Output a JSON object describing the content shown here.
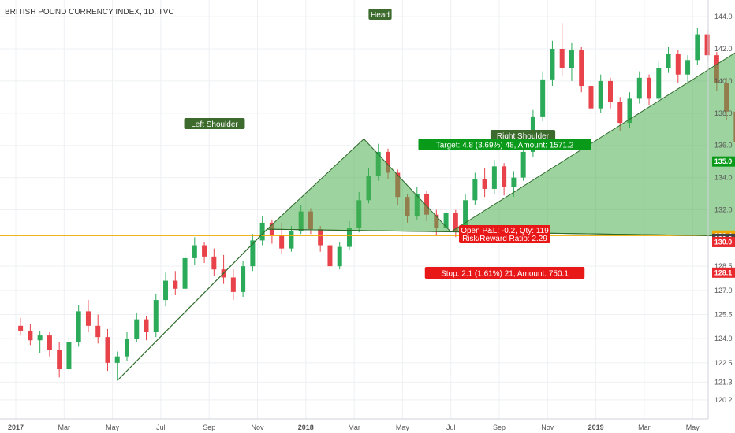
{
  "chart_data": {
    "type": "candlestick",
    "title": "BRITISH POUND CURRENCY INDEX, 1D, TVC",
    "y_ticks": [
      "120.2",
      "121.3",
      "122.5",
      "124.0",
      "125.5",
      "127.0",
      "128.5",
      "130.0",
      "132.0",
      "134.0",
      "136.0",
      "138.0",
      "140.0",
      "142.0",
      "144.0"
    ],
    "x_ticks": [
      "2017",
      "Mar",
      "May",
      "Jul",
      "Sep",
      "Nov",
      "2018",
      "Mar",
      "May",
      "Jul",
      "Sep",
      "Nov",
      "2019",
      "Mar",
      "May"
    ],
    "ylim": [
      120.0,
      144.2
    ],
    "grid": true,
    "price_badges": [
      {
        "text": "135.0",
        "value": 135.0,
        "color": "#089a18"
      },
      {
        "text": "130.4",
        "value": 130.4,
        "color": "#f0a800"
      },
      {
        "text": "130.2",
        "value": 130.2,
        "color": "#444444"
      },
      {
        "text": "130.0",
        "value": 130.0,
        "color": "#e8282c"
      },
      {
        "text": "128.1",
        "value": 128.1,
        "color": "#e8282c"
      }
    ],
    "horizontal_line": {
      "value": 130.4,
      "color": "#f0a800"
    },
    "pattern": {
      "left_shoulder": {
        "label": "Left Shoulder",
        "t": 7.2,
        "v": 136.4
      },
      "head": {
        "label": "Head",
        "t": 15.7,
        "v": 143.3
      },
      "right_shoulder": {
        "label": "Right Shoulder",
        "t": 20.3,
        "v": 135.3
      },
      "neckline_left": {
        "t": 5.2,
        "v": 130.8
      },
      "neckline_right": {
        "t": 23.6,
        "v": 130.0
      }
    },
    "projection": {
      "from": {
        "t": 20.3,
        "v": 135.3
      },
      "to": {
        "t": 27.8,
        "v": 121.0
      }
    },
    "left_leg": {
      "from": {
        "t": 2.1,
        "v": 121.4
      },
      "to": {
        "t": 5.2,
        "v": 130.8
      }
    },
    "position": {
      "t_start": 18.8,
      "t_end": 21.3,
      "entry": 130.2,
      "target": 135.0,
      "stop": 128.1,
      "target_text": "Target: 4.8 (3.69%) 48, Amount: 1571.2",
      "pnl_text": "Open P&L: -0.2, Qty: 119",
      "rr_text": "Risk/Reward Ratio: 2.29",
      "stop_text": "Stop: 2.1 (1.61%) 21, Amount: 750.1"
    },
    "candles": [
      {
        "t": 0.1,
        "o": 124.8,
        "h": 125.3,
        "l": 124.2,
        "c": 124.5
      },
      {
        "t": 0.3,
        "o": 124.5,
        "h": 124.9,
        "l": 123.6,
        "c": 123.9
      },
      {
        "t": 0.5,
        "o": 123.9,
        "h": 124.5,
        "l": 123.1,
        "c": 124.2
      },
      {
        "t": 0.7,
        "o": 124.2,
        "h": 124.4,
        "l": 122.9,
        "c": 123.3
      },
      {
        "t": 0.9,
        "o": 123.3,
        "h": 123.8,
        "l": 121.6,
        "c": 122.1
      },
      {
        "t": 1.1,
        "o": 122.1,
        "h": 124.1,
        "l": 121.9,
        "c": 123.8
      },
      {
        "t": 1.3,
        "o": 123.8,
        "h": 126.1,
        "l": 123.5,
        "c": 125.7
      },
      {
        "t": 1.5,
        "o": 125.7,
        "h": 126.4,
        "l": 124.4,
        "c": 124.8
      },
      {
        "t": 1.7,
        "o": 124.8,
        "h": 125.5,
        "l": 123.7,
        "c": 124.1
      },
      {
        "t": 1.9,
        "o": 124.1,
        "h": 124.6,
        "l": 122.0,
        "c": 122.5
      },
      {
        "t": 2.1,
        "o": 122.5,
        "h": 123.2,
        "l": 121.4,
        "c": 122.9
      },
      {
        "t": 2.3,
        "o": 122.9,
        "h": 124.4,
        "l": 122.6,
        "c": 124.0
      },
      {
        "t": 2.5,
        "o": 124.0,
        "h": 125.6,
        "l": 123.8,
        "c": 125.2
      },
      {
        "t": 2.7,
        "o": 125.2,
        "h": 125.4,
        "l": 123.9,
        "c": 124.4
      },
      {
        "t": 2.9,
        "o": 124.4,
        "h": 126.8,
        "l": 124.1,
        "c": 126.4
      },
      {
        "t": 3.1,
        "o": 126.4,
        "h": 128.1,
        "l": 126.0,
        "c": 127.6
      },
      {
        "t": 3.3,
        "o": 127.6,
        "h": 128.2,
        "l": 126.7,
        "c": 127.1
      },
      {
        "t": 3.5,
        "o": 127.1,
        "h": 129.4,
        "l": 126.9,
        "c": 129.0
      },
      {
        "t": 3.7,
        "o": 129.0,
        "h": 130.3,
        "l": 128.6,
        "c": 129.8
      },
      {
        "t": 3.9,
        "o": 129.8,
        "h": 130.0,
        "l": 128.7,
        "c": 129.1
      },
      {
        "t": 4.1,
        "o": 129.1,
        "h": 129.6,
        "l": 127.9,
        "c": 128.3
      },
      {
        "t": 4.3,
        "o": 128.3,
        "h": 129.2,
        "l": 127.4,
        "c": 127.8
      },
      {
        "t": 4.5,
        "o": 127.8,
        "h": 128.3,
        "l": 126.4,
        "c": 126.9
      },
      {
        "t": 4.7,
        "o": 126.9,
        "h": 128.8,
        "l": 126.6,
        "c": 128.5
      },
      {
        "t": 4.9,
        "o": 128.5,
        "h": 130.5,
        "l": 128.2,
        "c": 130.1
      },
      {
        "t": 5.1,
        "o": 130.1,
        "h": 131.6,
        "l": 129.8,
        "c": 131.2
      },
      {
        "t": 5.3,
        "o": 131.2,
        "h": 131.4,
        "l": 129.9,
        "c": 130.4
      },
      {
        "t": 5.5,
        "o": 130.4,
        "h": 131.2,
        "l": 129.3,
        "c": 129.6
      },
      {
        "t": 5.7,
        "o": 129.6,
        "h": 131.0,
        "l": 129.4,
        "c": 130.7
      },
      {
        "t": 5.9,
        "o": 130.7,
        "h": 132.3,
        "l": 130.5,
        "c": 131.9
      },
      {
        "t": 6.1,
        "o": 131.9,
        "h": 132.1,
        "l": 130.5,
        "c": 130.8
      },
      {
        "t": 6.3,
        "o": 130.8,
        "h": 131.0,
        "l": 129.4,
        "c": 129.8
      },
      {
        "t": 6.5,
        "o": 129.8,
        "h": 130.1,
        "l": 128.1,
        "c": 128.5
      },
      {
        "t": 6.7,
        "o": 128.5,
        "h": 130.0,
        "l": 128.3,
        "c": 129.7
      },
      {
        "t": 6.9,
        "o": 129.7,
        "h": 131.3,
        "l": 129.5,
        "c": 130.9
      },
      {
        "t": 7.1,
        "o": 130.9,
        "h": 133.1,
        "l": 130.6,
        "c": 132.6
      },
      {
        "t": 7.3,
        "o": 132.6,
        "h": 134.6,
        "l": 132.4,
        "c": 134.1
      },
      {
        "t": 7.5,
        "o": 134.1,
        "h": 136.1,
        "l": 133.8,
        "c": 135.6
      },
      {
        "t": 7.7,
        "o": 135.6,
        "h": 135.8,
        "l": 133.9,
        "c": 134.3
      },
      {
        "t": 7.9,
        "o": 134.3,
        "h": 134.5,
        "l": 132.3,
        "c": 132.8
      },
      {
        "t": 8.1,
        "o": 132.8,
        "h": 133.0,
        "l": 131.2,
        "c": 131.6
      },
      {
        "t": 8.3,
        "o": 131.6,
        "h": 133.4,
        "l": 131.4,
        "c": 133.0
      },
      {
        "t": 8.5,
        "o": 133.0,
        "h": 133.2,
        "l": 131.3,
        "c": 131.7
      },
      {
        "t": 8.7,
        "o": 131.7,
        "h": 132.0,
        "l": 130.4,
        "c": 130.9
      },
      {
        "t": 8.9,
        "o": 130.9,
        "h": 132.1,
        "l": 130.6,
        "c": 131.8
      },
      {
        "t": 9.1,
        "o": 131.8,
        "h": 132.0,
        "l": 130.3,
        "c": 130.7
      },
      {
        "t": 9.3,
        "o": 130.7,
        "h": 133.0,
        "l": 130.5,
        "c": 132.6
      },
      {
        "t": 9.5,
        "o": 132.6,
        "h": 134.3,
        "l": 132.3,
        "c": 133.9
      },
      {
        "t": 9.7,
        "o": 133.9,
        "h": 134.6,
        "l": 132.8,
        "c": 133.3
      },
      {
        "t": 9.9,
        "o": 133.3,
        "h": 135.1,
        "l": 133.0,
        "c": 134.7
      },
      {
        "t": 10.1,
        "o": 134.7,
        "h": 134.9,
        "l": 132.9,
        "c": 133.4
      },
      {
        "t": 10.3,
        "o": 133.4,
        "h": 134.4,
        "l": 132.8,
        "c": 134.0
      },
      {
        "t": 10.5,
        "o": 134.0,
        "h": 136.1,
        "l": 133.8,
        "c": 135.6
      },
      {
        "t": 10.7,
        "o": 135.6,
        "h": 138.2,
        "l": 135.3,
        "c": 137.8
      },
      {
        "t": 10.9,
        "o": 137.8,
        "h": 140.6,
        "l": 137.5,
        "c": 140.1
      },
      {
        "t": 11.1,
        "o": 140.1,
        "h": 142.5,
        "l": 139.7,
        "c": 142.0
      },
      {
        "t": 11.3,
        "o": 142.0,
        "h": 143.6,
        "l": 140.3,
        "c": 140.8
      },
      {
        "t": 11.5,
        "o": 140.8,
        "h": 142.4,
        "l": 140.0,
        "c": 141.9
      },
      {
        "t": 11.7,
        "o": 141.9,
        "h": 142.1,
        "l": 139.3,
        "c": 139.7
      },
      {
        "t": 11.9,
        "o": 139.7,
        "h": 140.1,
        "l": 137.8,
        "c": 138.3
      },
      {
        "t": 12.1,
        "o": 138.3,
        "h": 140.4,
        "l": 138.0,
        "c": 140.0
      },
      {
        "t": 12.3,
        "o": 140.0,
        "h": 140.2,
        "l": 138.3,
        "c": 138.7
      },
      {
        "t": 12.5,
        "o": 138.7,
        "h": 139.0,
        "l": 136.9,
        "c": 137.4
      },
      {
        "t": 12.7,
        "o": 137.4,
        "h": 139.3,
        "l": 137.1,
        "c": 138.9
      },
      {
        "t": 12.9,
        "o": 138.9,
        "h": 140.6,
        "l": 138.6,
        "c": 140.2
      },
      {
        "t": 13.1,
        "o": 140.2,
        "h": 140.4,
        "l": 138.5,
        "c": 138.9
      },
      {
        "t": 13.3,
        "o": 138.9,
        "h": 141.2,
        "l": 138.7,
        "c": 140.8
      },
      {
        "t": 13.5,
        "o": 140.8,
        "h": 142.1,
        "l": 140.5,
        "c": 141.7
      },
      {
        "t": 13.7,
        "o": 141.7,
        "h": 141.9,
        "l": 139.9,
        "c": 140.4
      },
      {
        "t": 13.9,
        "o": 140.4,
        "h": 141.6,
        "l": 139.8,
        "c": 141.3
      },
      {
        "t": 14.1,
        "o": 141.3,
        "h": 143.3,
        "l": 141.0,
        "c": 142.9
      },
      {
        "t": 14.3,
        "o": 142.9,
        "h": 143.1,
        "l": 141.2,
        "c": 141.6
      },
      {
        "t": 14.5,
        "o": 141.6,
        "h": 141.8,
        "l": 139.4,
        "c": 139.9
      },
      {
        "t": 14.7,
        "o": 139.9,
        "h": 140.2,
        "l": 137.6,
        "c": 138.1
      },
      {
        "t": 14.9,
        "o": 138.1,
        "h": 138.4,
        "l": 135.8,
        "c": 136.2
      },
      {
        "t": 15.1,
        "o": 136.2,
        "h": 136.5,
        "l": 134.4,
        "c": 134.8
      },
      {
        "t": 15.3,
        "o": 134.8,
        "h": 135.9,
        "l": 134.1,
        "c": 135.5
      },
      {
        "t": 15.5,
        "o": 135.5,
        "h": 135.7,
        "l": 133.7,
        "c": 134.1
      },
      {
        "t": 15.7,
        "o": 134.1,
        "h": 134.3,
        "l": 132.3,
        "c": 132.7
      },
      {
        "t": 15.9,
        "o": 132.7,
        "h": 134.0,
        "l": 132.4,
        "c": 133.6
      },
      {
        "t": 16.1,
        "o": 133.6,
        "h": 133.8,
        "l": 131.8,
        "c": 132.2
      },
      {
        "t": 16.3,
        "o": 132.2,
        "h": 133.2,
        "l": 131.6,
        "c": 132.9
      },
      {
        "t": 16.5,
        "o": 132.9,
        "h": 133.1,
        "l": 131.1,
        "c": 131.5
      },
      {
        "t": 16.7,
        "o": 131.5,
        "h": 131.7,
        "l": 130.2,
        "c": 130.6
      },
      {
        "t": 16.9,
        "o": 130.6,
        "h": 132.4,
        "l": 130.3,
        "c": 132.0
      },
      {
        "t": 17.1,
        "o": 132.0,
        "h": 132.2,
        "l": 130.6,
        "c": 131.0
      },
      {
        "t": 17.3,
        "o": 131.0,
        "h": 131.2,
        "l": 129.9,
        "c": 130.3
      },
      {
        "t": 17.5,
        "o": 130.3,
        "h": 131.4,
        "l": 130.0,
        "c": 131.0
      },
      {
        "t": 17.7,
        "o": 131.0,
        "h": 131.3,
        "l": 130.1,
        "c": 130.5
      },
      {
        "t": 17.9,
        "o": 130.5,
        "h": 131.1,
        "l": 130.0,
        "c": 130.8
      },
      {
        "t": 18.1,
        "o": 130.8,
        "h": 131.0,
        "l": 129.9,
        "c": 130.3
      },
      {
        "t": 18.3,
        "o": 130.3,
        "h": 130.9,
        "l": 129.8,
        "c": 130.6
      },
      {
        "t": 18.5,
        "o": 130.6,
        "h": 130.8,
        "l": 129.9,
        "c": 130.2
      }
    ]
  }
}
